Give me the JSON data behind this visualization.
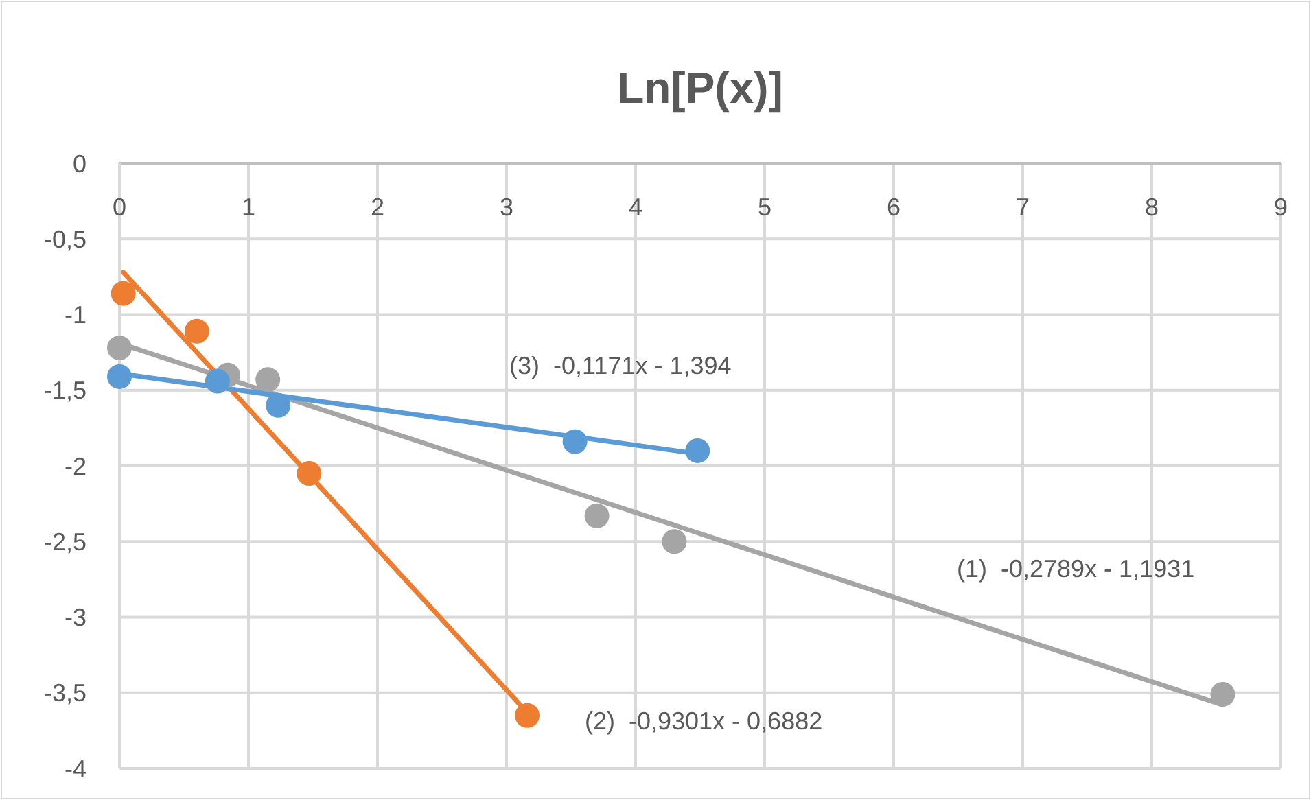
{
  "chart_data": {
    "type": "scatter",
    "title": "Ln[P(x)]",
    "xlim": [
      0,
      9
    ],
    "xticks": [
      0,
      1,
      2,
      3,
      4,
      5,
      6,
      7,
      8,
      9
    ],
    "ylim": [
      -4,
      0
    ],
    "yticks": [
      0,
      {
        "value": -0.5,
        "label": "-0,5"
      },
      -1,
      {
        "value": -1.5,
        "label": "-1,5"
      },
      -2,
      {
        "value": -2.5,
        "label": "-2,5"
      },
      -3,
      {
        "value": -3.5,
        "label": "-3,5"
      },
      -4
    ],
    "grid": true,
    "marker": "circle",
    "series": [
      {
        "color": "#a5a5a5",
        "x": [
          0,
          0.84,
          1.15,
          3.7,
          4.3,
          8.55
        ],
        "values": [
          -1.22,
          -1.4,
          -1.43,
          -2.33,
          -2.5,
          -3.51
        ]
      },
      {
        "color": "#ed7d31",
        "x": [
          0.03,
          0.6,
          1.47,
          3.16
        ],
        "values": [
          -0.86,
          -1.11,
          -2.05,
          -3.65
        ]
      },
      {
        "color": "#5b9bd5",
        "x": [
          0,
          0.76,
          1.23,
          3.53,
          4.48
        ],
        "values": [
          -1.41,
          -1.44,
          -1.6,
          -1.84,
          -1.9
        ]
      },
      {
        "type": "line",
        "color": "#a5a5a5",
        "x": [
          0,
          8.55
        ],
        "values": [
          -1.19,
          -3.58
        ],
        "marker": "none"
      },
      {
        "type": "line",
        "color": "#ed7d31",
        "x": [
          0.03,
          3.16
        ],
        "values": [
          -0.72,
          -3.63
        ],
        "marker": "none"
      },
      {
        "type": "line",
        "color": "#5b9bd5",
        "x": [
          0,
          4.48
        ],
        "values": [
          -1.39,
          -1.92
        ],
        "marker": "none"
      }
    ],
    "annotations": [
      "(3)  -0,1171x - 1,394",
      "(1)  -0,2789x - 1,1931",
      "(2)  -0,9301x - 0,6882"
    ]
  }
}
